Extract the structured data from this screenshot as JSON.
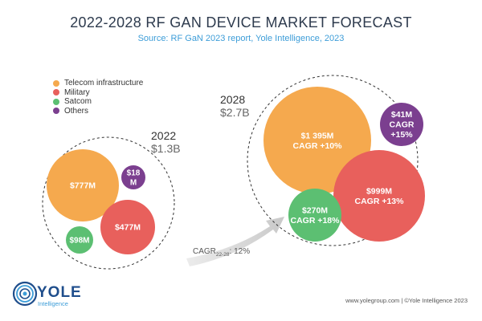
{
  "page": {
    "title": "2022-2028 RF GAN DEVICE MARKET FORECAST",
    "subtitle": "Source: RF GaN 2023 report, Yole Intelligence, 2023",
    "footer": "www.yolegroup.com | ©Yole Intelligence 2023",
    "logo_text": "YOLE",
    "logo_sub": "Intelligence"
  },
  "legend": [
    {
      "label": "Telecom infrastructure",
      "color": "#f5a94e"
    },
    {
      "label": "Military",
      "color": "#e8605c"
    },
    {
      "label": "Satcom",
      "color": "#5cbf72"
    },
    {
      "label": "Others",
      "color": "#7b3f8f"
    }
  ],
  "chart_data": {
    "type": "bubble",
    "title": "2022-2028 RF GAN DEVICE MARKET FORECAST",
    "cagr": {
      "prefix": "CAGR",
      "sub": "22-28",
      "suffix": ": 12%"
    },
    "groups": [
      {
        "year": "2022",
        "total": "$1.3B",
        "bubbles": [
          {
            "category": "Telecom infrastructure",
            "value": 777,
            "label": "$777M",
            "cagr": ""
          },
          {
            "category": "Others",
            "value": 18,
            "label": "$18 M",
            "cagr": ""
          },
          {
            "category": "Military",
            "value": 477,
            "label": "$477M",
            "cagr": ""
          },
          {
            "category": "Satcom",
            "value": 98,
            "label": "$98M",
            "cagr": ""
          }
        ]
      },
      {
        "year": "2028",
        "total": "$2.7B",
        "bubbles": [
          {
            "category": "Telecom infrastructure",
            "value": 1395,
            "label": "$1 395M",
            "cagr": "CAGR +10%"
          },
          {
            "category": "Others",
            "value": 41,
            "label": "$41M",
            "cagr": "CAGR +15%"
          },
          {
            "category": "Military",
            "value": 999,
            "label": "$999M",
            "cagr": "CAGR +13%"
          },
          {
            "category": "Satcom",
            "value": 270,
            "label": "$270M",
            "cagr": "CAGR +18%"
          }
        ]
      }
    ]
  }
}
